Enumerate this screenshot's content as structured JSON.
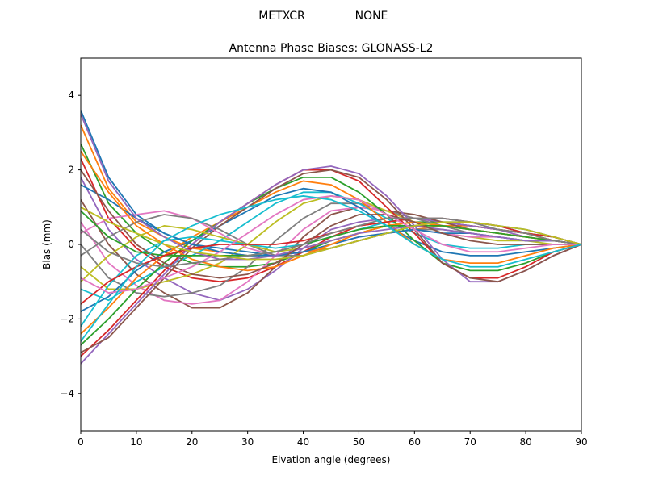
{
  "header": {
    "antenna": "METXCR",
    "radome": "NONE"
  },
  "chart_data": {
    "type": "line",
    "title": "Antenna Phase Biases: GLONASS-L2",
    "xlabel": "Elvation angle (degrees)",
    "ylabel": "Bias (mm)",
    "xlim": [
      0,
      90
    ],
    "ylim": [
      -5,
      5
    ],
    "xticks": [
      0,
      10,
      20,
      30,
      40,
      50,
      60,
      70,
      80,
      90
    ],
    "yticks": [
      -4,
      -2,
      0,
      2,
      4
    ],
    "grid": false,
    "legend": "none",
    "x": [
      0,
      5,
      10,
      15,
      20,
      25,
      30,
      35,
      40,
      45,
      50,
      55,
      60,
      65,
      70,
      75,
      80,
      85,
      90
    ],
    "series": [
      {
        "values": [
          3.6,
          1.8,
          0.8,
          0.3,
          0.0,
          -0.1,
          -0.2,
          -0.3,
          -0.2,
          -0.1,
          0.1,
          0.3,
          0.5,
          0.6,
          0.6,
          0.5,
          0.4,
          0.2,
          0.0
        ]
      },
      {
        "values": [
          3.2,
          1.5,
          0.6,
          0.2,
          -0.1,
          -0.2,
          -0.3,
          -0.3,
          -0.2,
          -0.1,
          0.1,
          0.3,
          0.4,
          0.5,
          0.5,
          0.4,
          0.3,
          0.2,
          0.0
        ]
      },
      {
        "values": [
          2.7,
          1.1,
          0.3,
          -0.2,
          -0.5,
          -0.6,
          -0.6,
          -0.5,
          -0.2,
          0.1,
          0.3,
          0.5,
          0.6,
          0.6,
          0.5,
          0.4,
          0.3,
          0.1,
          0.0
        ]
      },
      {
        "values": [
          2.3,
          0.7,
          -0.1,
          -0.6,
          -0.9,
          -1.0,
          -0.9,
          -0.6,
          -0.2,
          0.2,
          0.5,
          0.6,
          0.7,
          0.6,
          0.5,
          0.4,
          0.3,
          0.1,
          0.0
        ]
      },
      {
        "values": [
          1.8,
          0.4,
          -0.4,
          -0.9,
          -1.3,
          -1.5,
          -1.2,
          -0.7,
          -0.1,
          0.4,
          0.6,
          0.7,
          0.7,
          0.6,
          0.5,
          0.4,
          0.2,
          0.1,
          0.0
        ]
      },
      {
        "values": [
          1.2,
          0.0,
          -0.8,
          -1.3,
          -1.7,
          -1.7,
          -1.3,
          -0.6,
          0.2,
          0.8,
          1.0,
          0.9,
          0.8,
          0.6,
          0.4,
          0.3,
          0.2,
          0.1,
          0.0
        ]
      },
      {
        "values": [
          0.6,
          -0.5,
          -1.1,
          -1.5,
          -1.6,
          -1.5,
          -1.0,
          -0.3,
          0.4,
          0.9,
          1.0,
          0.9,
          0.7,
          0.5,
          0.4,
          0.3,
          0.2,
          0.1,
          0.0
        ]
      },
      {
        "values": [
          0.0,
          -0.9,
          -1.3,
          -1.4,
          -1.3,
          -1.1,
          -0.6,
          0.1,
          0.7,
          1.1,
          1.1,
          0.9,
          0.7,
          0.5,
          0.3,
          0.2,
          0.1,
          0.1,
          0.0
        ]
      },
      {
        "values": [
          -0.6,
          -1.2,
          -1.2,
          -1.0,
          -0.8,
          -0.5,
          0.0,
          0.6,
          1.1,
          1.3,
          1.2,
          0.9,
          0.6,
          0.3,
          0.2,
          0.1,
          0.1,
          0.0,
          0.0
        ]
      },
      {
        "values": [
          -1.2,
          -1.5,
          -1.0,
          -0.6,
          -0.3,
          0.1,
          0.6,
          1.1,
          1.4,
          1.4,
          1.1,
          0.7,
          0.3,
          0.0,
          -0.1,
          -0.1,
          0.0,
          0.0,
          0.0
        ]
      },
      {
        "values": [
          -1.8,
          -1.4,
          -0.7,
          -0.2,
          0.1,
          0.5,
          0.9,
          1.3,
          1.5,
          1.4,
          1.0,
          0.5,
          0.1,
          -0.2,
          -0.3,
          -0.3,
          -0.2,
          -0.1,
          0.0
        ]
      },
      {
        "values": [
          -2.4,
          -1.7,
          -0.9,
          -0.3,
          0.2,
          0.6,
          1.0,
          1.4,
          1.7,
          1.6,
          1.2,
          0.6,
          0.0,
          -0.4,
          -0.5,
          -0.5,
          -0.3,
          -0.1,
          0.0
        ]
      },
      {
        "values": [
          -2.7,
          -2.0,
          -1.2,
          -0.5,
          0.1,
          0.6,
          1.1,
          1.5,
          1.8,
          1.8,
          1.4,
          0.8,
          0.1,
          -0.5,
          -0.7,
          -0.7,
          -0.5,
          -0.2,
          0.0
        ]
      },
      {
        "values": [
          -3.0,
          -2.3,
          -1.5,
          -0.7,
          0.0,
          0.6,
          1.1,
          1.6,
          2.0,
          2.0,
          1.7,
          1.0,
          0.3,
          -0.5,
          -0.9,
          -0.9,
          -0.6,
          -0.2,
          0.0
        ]
      },
      {
        "values": [
          -3.2,
          -2.4,
          -1.6,
          -0.8,
          0.0,
          0.6,
          1.1,
          1.6,
          2.0,
          2.1,
          1.9,
          1.3,
          0.5,
          -0.4,
          -1.0,
          -1.0,
          -0.7,
          -0.3,
          0.0
        ]
      },
      {
        "values": [
          -2.9,
          -2.5,
          -1.7,
          -0.9,
          -0.1,
          0.5,
          1.0,
          1.5,
          1.9,
          2.0,
          1.8,
          1.2,
          0.4,
          -0.5,
          -0.9,
          -1.0,
          -0.7,
          -0.3,
          0.0
        ]
      },
      {
        "values": [
          0.3,
          0.7,
          0.8,
          0.9,
          0.7,
          0.3,
          -0.1,
          -0.3,
          -0.2,
          0.0,
          0.2,
          0.3,
          0.4,
          0.3,
          0.2,
          0.2,
          0.1,
          0.1,
          0.0
        ]
      },
      {
        "values": [
          -0.3,
          0.2,
          0.6,
          0.8,
          0.7,
          0.4,
          0.0,
          -0.3,
          -0.3,
          -0.1,
          0.1,
          0.3,
          0.4,
          0.4,
          0.3,
          0.2,
          0.1,
          0.1,
          0.0
        ]
      },
      {
        "values": [
          -1.0,
          -0.3,
          0.2,
          0.5,
          0.4,
          0.2,
          0.0,
          -0.2,
          -0.1,
          0.1,
          0.3,
          0.5,
          0.6,
          0.5,
          0.4,
          0.3,
          0.2,
          0.1,
          0.0
        ]
      },
      {
        "values": [
          -2.2,
          -1.1,
          -0.3,
          0.1,
          0.2,
          0.1,
          0.0,
          -0.1,
          0.0,
          0.2,
          0.4,
          0.6,
          0.7,
          0.7,
          0.6,
          0.5,
          0.3,
          0.2,
          0.0
        ]
      },
      {
        "values": [
          1.6,
          1.2,
          0.7,
          0.3,
          0.0,
          -0.2,
          -0.3,
          -0.3,
          -0.2,
          0.0,
          0.2,
          0.3,
          0.4,
          0.3,
          0.3,
          0.2,
          0.1,
          0.1,
          0.0
        ]
      },
      {
        "values": [
          2.5,
          1.4,
          0.5,
          0.0,
          -0.4,
          -0.6,
          -0.7,
          -0.6,
          -0.3,
          0.0,
          0.3,
          0.5,
          0.6,
          0.5,
          0.4,
          0.3,
          0.2,
          0.1,
          0.0
        ]
      },
      {
        "values": [
          0.9,
          0.2,
          -0.2,
          -0.3,
          -0.3,
          -0.3,
          -0.3,
          -0.2,
          0.0,
          0.2,
          0.4,
          0.5,
          0.5,
          0.5,
          0.4,
          0.3,
          0.2,
          0.1,
          0.0
        ]
      },
      {
        "values": [
          -1.6,
          -1.0,
          -0.6,
          -0.3,
          -0.1,
          0.0,
          0.0,
          0.0,
          0.1,
          0.3,
          0.5,
          0.6,
          0.7,
          0.7,
          0.6,
          0.5,
          0.3,
          0.2,
          0.0
        ]
      },
      {
        "values": [
          3.5,
          1.7,
          0.7,
          0.2,
          -0.2,
          -0.4,
          -0.4,
          -0.3,
          -0.1,
          0.1,
          0.3,
          0.4,
          0.5,
          0.4,
          0.3,
          0.2,
          0.1,
          0.1,
          0.0
        ]
      },
      {
        "values": [
          2.0,
          0.9,
          0.0,
          -0.5,
          -0.8,
          -0.9,
          -0.8,
          -0.5,
          0.0,
          0.5,
          0.8,
          0.8,
          0.6,
          0.3,
          0.1,
          0.0,
          0.0,
          0.0,
          0.0
        ]
      },
      {
        "values": [
          -0.9,
          -1.3,
          -1.2,
          -0.9,
          -0.6,
          -0.2,
          0.3,
          0.8,
          1.2,
          1.3,
          1.2,
          0.8,
          0.4,
          0.0,
          -0.2,
          -0.2,
          -0.1,
          0.0,
          0.0
        ]
      },
      {
        "values": [
          0.4,
          -0.2,
          -0.5,
          -0.6,
          -0.5,
          -0.4,
          -0.3,
          -0.2,
          0.0,
          0.3,
          0.5,
          0.7,
          0.7,
          0.7,
          0.6,
          0.4,
          0.3,
          0.1,
          0.0
        ]
      },
      {
        "values": [
          1.0,
          0.6,
          0.3,
          0.0,
          -0.2,
          -0.3,
          -0.4,
          -0.4,
          -0.3,
          -0.1,
          0.1,
          0.3,
          0.5,
          0.6,
          0.6,
          0.5,
          0.4,
          0.2,
          0.0
        ]
      },
      {
        "values": [
          -2.6,
          -1.6,
          -0.6,
          0.1,
          0.5,
          0.8,
          1.0,
          1.2,
          1.3,
          1.2,
          0.9,
          0.5,
          0.0,
          -0.4,
          -0.6,
          -0.6,
          -0.4,
          -0.2,
          0.0
        ]
      }
    ]
  }
}
